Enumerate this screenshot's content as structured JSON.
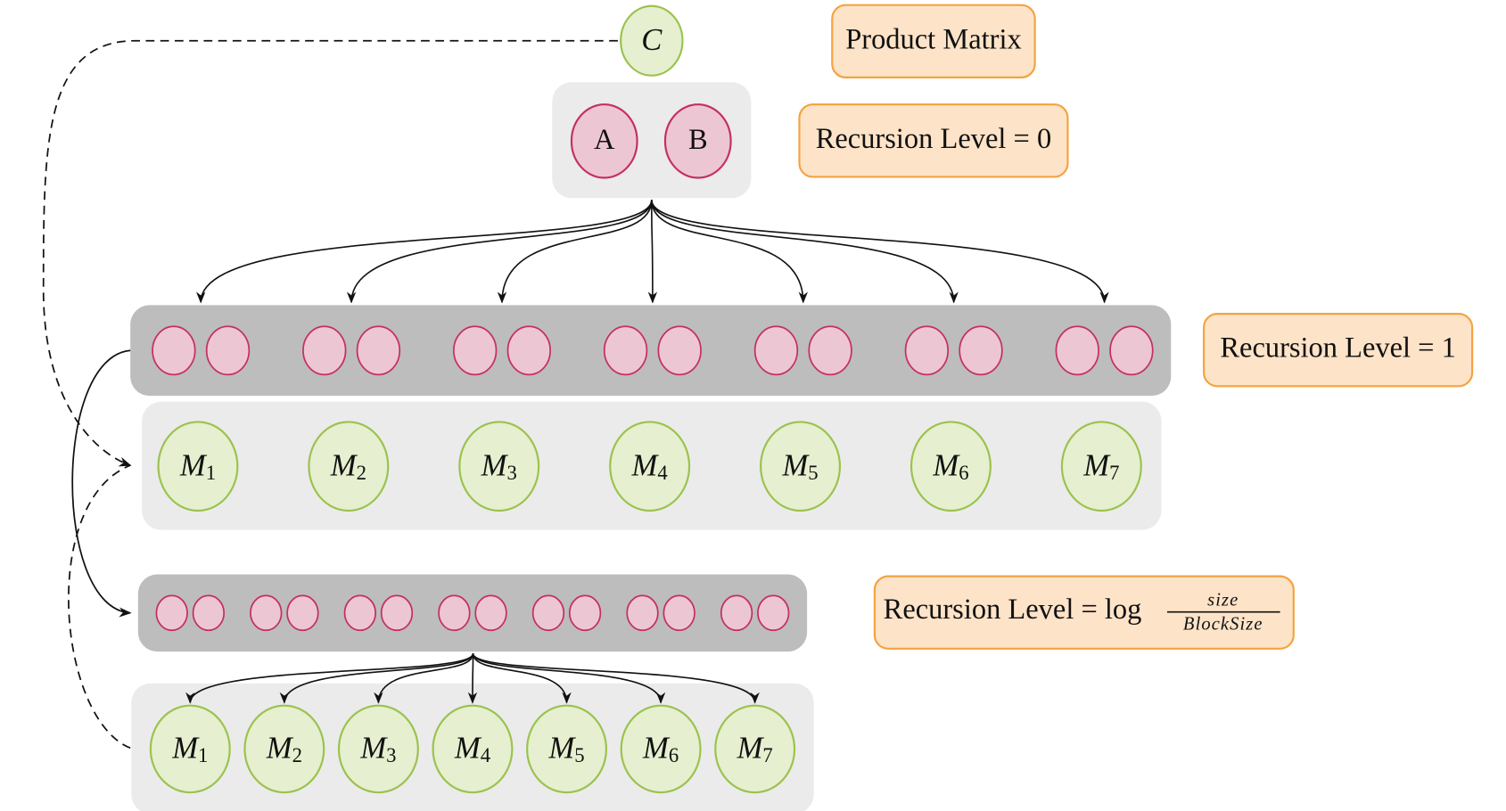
{
  "product": "C",
  "inputs": [
    "A",
    "B"
  ],
  "labels": {
    "product_matrix": "Product Matrix",
    "level0": "Recursion Level = 0",
    "level1": "Recursion Level = 1",
    "level_log": {
      "prefix": "Recursion Level = log",
      "numerator": "size",
      "denominator": "BlockSize"
    }
  },
  "level1_products": [
    {
      "base": "M",
      "sub": "1"
    },
    {
      "base": "M",
      "sub": "2"
    },
    {
      "base": "M",
      "sub": "3"
    },
    {
      "base": "M",
      "sub": "4"
    },
    {
      "base": "M",
      "sub": "5"
    },
    {
      "base": "M",
      "sub": "6"
    },
    {
      "base": "M",
      "sub": "7"
    }
  ],
  "leaf_products": [
    {
      "base": "M",
      "sub": "1"
    },
    {
      "base": "M",
      "sub": "2"
    },
    {
      "base": "M",
      "sub": "3"
    },
    {
      "base": "M",
      "sub": "4"
    },
    {
      "base": "M",
      "sub": "5"
    },
    {
      "base": "M",
      "sub": "6"
    },
    {
      "base": "M",
      "sub": "7"
    }
  ]
}
